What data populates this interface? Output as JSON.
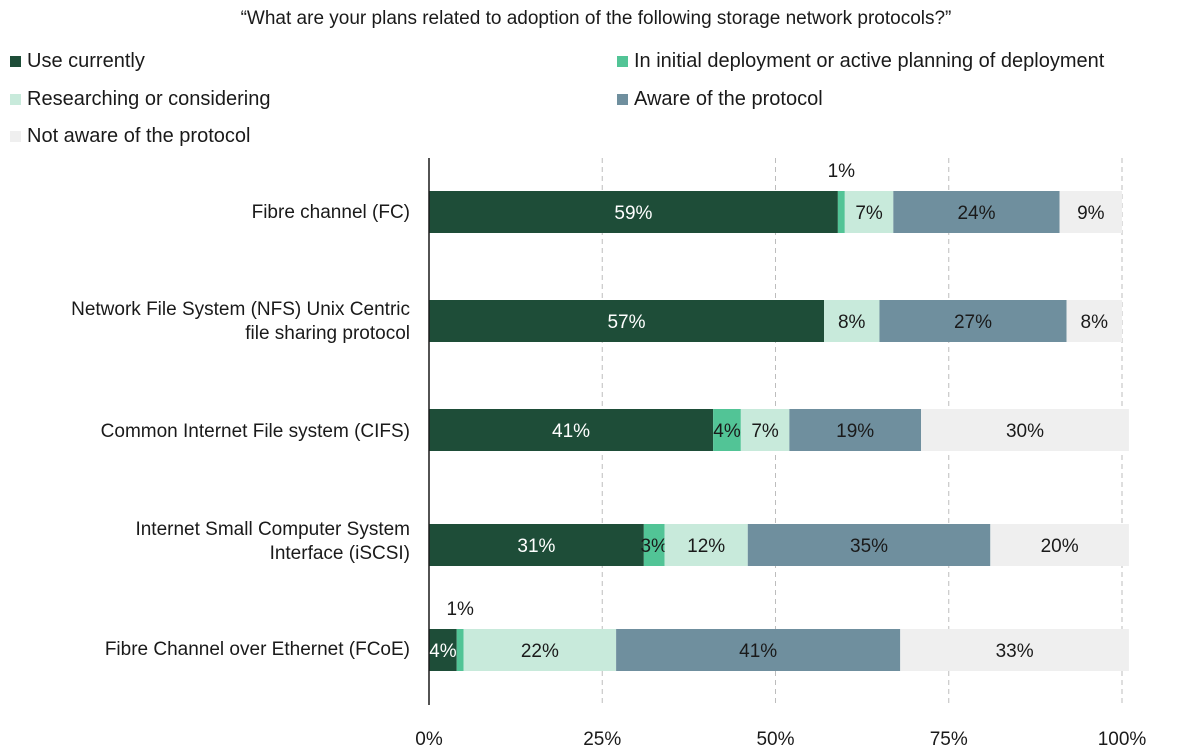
{
  "chart_data": {
    "type": "bar",
    "orientation": "horizontal",
    "stacked": true,
    "title": "“What are your plans related to adoption of the following storage network protocols?”",
    "categories": [
      "Fibre channel (FC)",
      "Network File System (NFS) Unix Centric file sharing protocol",
      "Common Internet File system (CIFS)",
      "Internet Small Computer System Interface (iSCSI)",
      "Fibre Channel over Ethernet (FCoE)"
    ],
    "series": [
      {
        "name": "Use currently",
        "color": "#1e4d38",
        "label_color": "#ffffff",
        "values": [
          59,
          57,
          41,
          31,
          4
        ]
      },
      {
        "name": "In initial deployment or active planning of deployment",
        "color": "#52c496",
        "label_color": "#1a1a1a",
        "values": [
          1,
          0,
          4,
          3,
          1
        ]
      },
      {
        "name": "Researching or considering",
        "color": "#c8eadb",
        "label_color": "#1a1a1a",
        "values": [
          7,
          8,
          7,
          12,
          22
        ]
      },
      {
        "name": "Aware of the protocol",
        "color": "#6f8f9e",
        "label_color": "#1a1a1a",
        "values": [
          24,
          27,
          19,
          35,
          41
        ]
      },
      {
        "name": "Not aware of the protocol",
        "color": "#efefef",
        "label_color": "#1a1a1a",
        "values": [
          9,
          8,
          30,
          20,
          33
        ]
      }
    ],
    "xlim": [
      0,
      100
    ],
    "x_ticks": [
      "0%",
      "25%",
      "50%",
      "75%",
      "100%"
    ],
    "grid": "vertical dashed",
    "legend_position": "top"
  }
}
